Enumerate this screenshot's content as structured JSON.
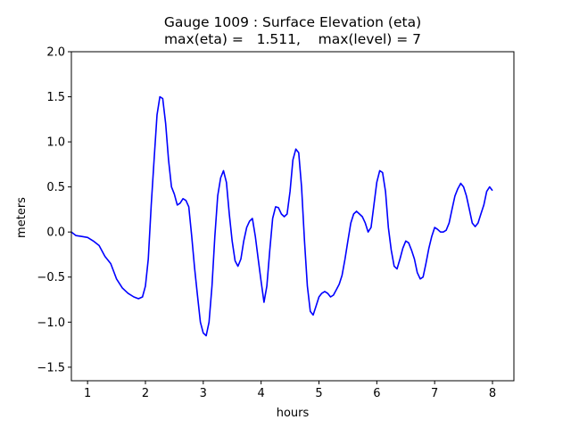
{
  "chart_data": {
    "type": "line",
    "title": "Gauge 1009 : Surface Elevation (eta)",
    "subtitle": "max(eta) =   1.511,    max(level) = 7",
    "xlabel": "hours",
    "ylabel": "meters",
    "xlim": [
      0.72,
      8.37
    ],
    "ylim": [
      -1.65,
      2.0
    ],
    "xticks": [
      1,
      2,
      3,
      4,
      5,
      6,
      7,
      8
    ],
    "yticks": [
      -1.5,
      -1.0,
      -0.5,
      0.0,
      0.5,
      1.0,
      1.5,
      2.0
    ],
    "ytick_labels": [
      "−1.5",
      "−1.0",
      "−0.5",
      "0.0",
      "0.5",
      "1.0",
      "1.5",
      "2.0"
    ],
    "grid": false,
    "series": [
      {
        "color": "#0000ff",
        "x": [
          0.72,
          0.8,
          0.9,
          1.0,
          1.1,
          1.2,
          1.3,
          1.4,
          1.5,
          1.6,
          1.7,
          1.8,
          1.88,
          1.95,
          2.0,
          2.05,
          2.1,
          2.15,
          2.2,
          2.25,
          2.3,
          2.35,
          2.4,
          2.45,
          2.5,
          2.55,
          2.6,
          2.65,
          2.7,
          2.75,
          2.8,
          2.85,
          2.9,
          2.95,
          3.0,
          3.05,
          3.1,
          3.15,
          3.2,
          3.25,
          3.3,
          3.35,
          3.4,
          3.45,
          3.5,
          3.55,
          3.6,
          3.65,
          3.7,
          3.75,
          3.8,
          3.85,
          3.9,
          3.95,
          4.0,
          4.05,
          4.1,
          4.15,
          4.2,
          4.25,
          4.3,
          4.35,
          4.4,
          4.45,
          4.5,
          4.55,
          4.6,
          4.65,
          4.7,
          4.75,
          4.8,
          4.85,
          4.9,
          4.95,
          5.0,
          5.05,
          5.1,
          5.15,
          5.2,
          5.25,
          5.3,
          5.35,
          5.4,
          5.45,
          5.5,
          5.55,
          5.6,
          5.65,
          5.7,
          5.75,
          5.8,
          5.85,
          5.9,
          5.95,
          6.0,
          6.05,
          6.1,
          6.15,
          6.2,
          6.25,
          6.3,
          6.35,
          6.4,
          6.45,
          6.5,
          6.55,
          6.6,
          6.65,
          6.7,
          6.75,
          6.8,
          6.85,
          6.9,
          6.95,
          7.0,
          7.05,
          7.1,
          7.15,
          7.2,
          7.25,
          7.3,
          7.35,
          7.4,
          7.45,
          7.5,
          7.55,
          7.6,
          7.65,
          7.7,
          7.75,
          7.8,
          7.85,
          7.9,
          7.95,
          8.0
        ],
        "y": [
          0.0,
          -0.04,
          -0.05,
          -0.06,
          -0.1,
          -0.15,
          -0.27,
          -0.35,
          -0.52,
          -0.62,
          -0.68,
          -0.72,
          -0.74,
          -0.72,
          -0.6,
          -0.3,
          0.3,
          0.8,
          1.3,
          1.5,
          1.48,
          1.2,
          0.8,
          0.5,
          0.42,
          0.3,
          0.32,
          0.37,
          0.35,
          0.28,
          -0.05,
          -0.4,
          -0.7,
          -1.0,
          -1.12,
          -1.15,
          -1.0,
          -0.6,
          -0.05,
          0.4,
          0.6,
          0.68,
          0.55,
          0.2,
          -0.1,
          -0.32,
          -0.38,
          -0.3,
          -0.1,
          0.05,
          0.12,
          0.15,
          -0.05,
          -0.3,
          -0.55,
          -0.78,
          -0.6,
          -0.2,
          0.15,
          0.28,
          0.27,
          0.2,
          0.17,
          0.2,
          0.45,
          0.8,
          0.92,
          0.88,
          0.5,
          -0.1,
          -0.6,
          -0.88,
          -0.92,
          -0.82,
          -0.72,
          -0.68,
          -0.66,
          -0.68,
          -0.72,
          -0.7,
          -0.64,
          -0.58,
          -0.48,
          -0.3,
          -0.1,
          0.1,
          0.2,
          0.23,
          0.2,
          0.17,
          0.1,
          0.0,
          0.05,
          0.3,
          0.55,
          0.68,
          0.66,
          0.45,
          0.05,
          -0.2,
          -0.38,
          -0.41,
          -0.3,
          -0.18,
          -0.1,
          -0.12,
          -0.2,
          -0.3,
          -0.45,
          -0.52,
          -0.5,
          -0.35,
          -0.18,
          -0.05,
          0.05,
          0.03,
          0.0,
          0.0,
          0.02,
          0.1,
          0.25,
          0.4,
          0.48,
          0.54,
          0.5,
          0.4,
          0.25,
          0.1,
          0.06,
          0.1,
          0.2,
          0.3,
          0.45,
          0.5,
          0.46
        ]
      }
    ]
  }
}
